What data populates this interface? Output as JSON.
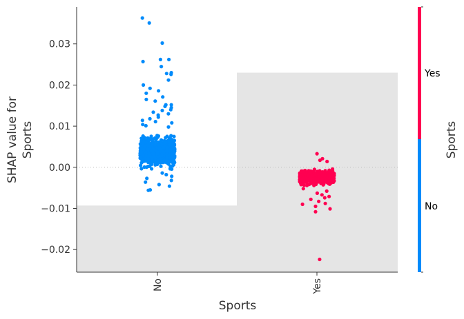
{
  "chart_data": {
    "type": "scatter",
    "subtype": "shap-dependence-categorical",
    "xlabel": "Sports",
    "ylabel_lines": [
      "SHAP value for",
      "Sports"
    ],
    "categories": [
      "No",
      "Yes"
    ],
    "ylim": [
      -0.0255,
      0.039
    ],
    "yticks": [
      -0.02,
      -0.01,
      0.0,
      0.01,
      0.02,
      0.03
    ],
    "ytick_labels": [
      "−0.02",
      "−0.01",
      "0.00",
      "0.01",
      "0.02",
      "0.03"
    ],
    "zero_line": true,
    "background_histogram": {
      "color": "#e5e5e5",
      "bars": [
        {
          "category": "No",
          "top": -0.0093
        },
        {
          "category": "Yes",
          "top": 0.023
        }
      ]
    },
    "series": [
      {
        "category": "No",
        "color": "#008bfb",
        "core": {
          "center": 0.0037,
          "spread": 0.0026,
          "count": 900
        },
        "outliers": [
          0.0363,
          0.0351,
          0.0302,
          0.0262,
          0.0262,
          0.0257,
          0.0245,
          0.023,
          0.0228,
          0.0226,
          0.0212,
          0.02,
          0.0192,
          0.0186,
          0.018,
          0.0171,
          0.0165,
          0.0161,
          0.0152,
          0.0152,
          0.0148,
          0.0145,
          0.014,
          0.0138,
          0.0134,
          0.013,
          0.0127,
          0.0122,
          0.0118,
          0.0114,
          0.0111,
          0.0108,
          0.0104,
          0.0101,
          0.0098,
          -0.0014,
          -0.0018,
          -0.0022,
          -0.0027,
          -0.0032,
          -0.0036,
          -0.0042,
          -0.0046,
          -0.0055,
          -0.0056
        ]
      },
      {
        "category": "Yes",
        "color": "#ff0051",
        "core": {
          "center": -0.0024,
          "spread": 0.0013,
          "count": 650
        },
        "outliers": [
          0.0033,
          0.0021,
          0.0017,
          0.0014,
          -0.0052,
          -0.0058,
          -0.0063,
          -0.0067,
          -0.0071,
          -0.0074,
          -0.0078,
          -0.0083,
          -0.0088,
          -0.009,
          -0.0095,
          -0.0101,
          -0.0108,
          -0.0224
        ]
      }
    ],
    "colorbar": {
      "label": "Sports",
      "top_label": "Yes",
      "bottom_label": "No",
      "top_color": "#ff0051",
      "bottom_color": "#008bfb"
    }
  }
}
